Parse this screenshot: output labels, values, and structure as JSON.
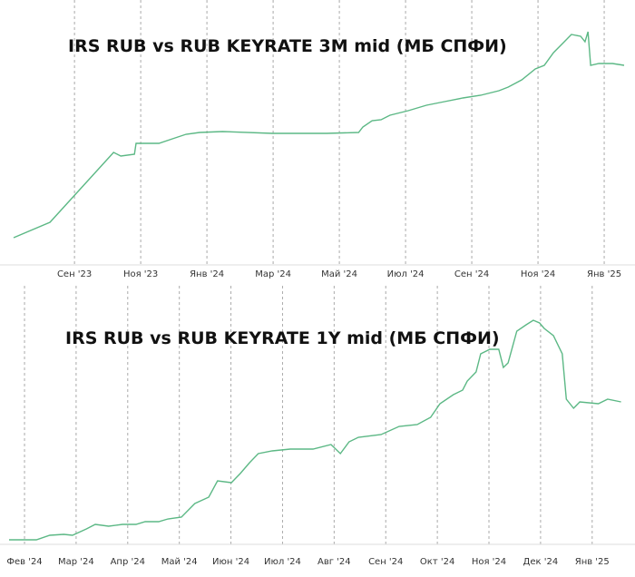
{
  "chart_data": [
    {
      "type": "line",
      "title": "IRS RUB vs RUB KEYRATE 3M mid (МБ СПФИ)",
      "x": [
        -1.84,
        -0.74,
        1.18,
        1.4,
        1.81,
        1.86,
        2.14,
        2.55,
        2.96,
        3.37,
        3.78,
        4.47,
        5.97,
        7.07,
        7.62,
        8.58,
        8.71,
        8.99,
        9.26,
        9.53,
        10.08,
        10.63,
        11.18,
        11.73,
        12.27,
        12.82,
        13.1,
        13.51,
        13.92,
        14.19,
        14.47,
        14.74,
        15.01,
        15.29,
        15.42,
        15.51,
        15.59,
        15.84,
        16.25,
        16.6
      ],
      "series": [
        {
          "name": "IRS RUB vs RUB KEYRATE 3M mid",
          "color": "#5cb885",
          "values": [
            30,
            47,
            124,
            120,
            122,
            134,
            134,
            134,
            139,
            144,
            146,
            147,
            145,
            145,
            145,
            146,
            152,
            159,
            160,
            165,
            170,
            176,
            180,
            184,
            187,
            192,
            196,
            204,
            216,
            220,
            234,
            244,
            254,
            252,
            246,
            257,
            220,
            222,
            222,
            220
          ]
        }
      ],
      "xlim": [
        -2.25,
        16.93
      ],
      "ylim": [
        0,
        292
      ],
      "xticks": [
        {
          "value": 0,
          "label": "Сен '23"
        },
        {
          "value": 2,
          "label": "Ноя '23"
        },
        {
          "value": 4,
          "label": "Янв '24"
        },
        {
          "value": 6,
          "label": "Мар '24"
        },
        {
          "value": 8,
          "label": "Май '24"
        },
        {
          "value": 10,
          "label": "Июл '24"
        },
        {
          "value": 12,
          "label": "Сен '24"
        },
        {
          "value": 14,
          "label": "Ноя '24"
        },
        {
          "value": 16,
          "label": "Янв '25"
        }
      ],
      "grid": true
    },
    {
      "type": "line",
      "title": "IRS RUB vs RUB KEYRATE 1Y mid (МБ СПФИ)",
      "x": [
        -0.3,
        0.23,
        0.49,
        0.76,
        0.93,
        1.2,
        1.37,
        1.63,
        1.9,
        2.16,
        2.34,
        2.6,
        2.78,
        3.04,
        3.3,
        3.57,
        3.74,
        4.01,
        4.18,
        4.36,
        4.53,
        4.8,
        5.15,
        5.59,
        5.94,
        6.12,
        6.29,
        6.47,
        6.91,
        7.26,
        7.61,
        7.87,
        8.05,
        8.31,
        8.49,
        8.58,
        8.75,
        8.84,
        9.02,
        9.19,
        9.28,
        9.37,
        9.54,
        9.72,
        9.86,
        9.98,
        10.07,
        10.25,
        10.42,
        10.5,
        10.64,
        10.76,
        11.12,
        11.3,
        11.56
      ],
      "series": [
        {
          "name": "IRS RUB vs RUB KEYRATE 1Y mid",
          "color": "#5cb885",
          "values": [
            5,
            5,
            10,
            11,
            10,
            17,
            22,
            20,
            22,
            22,
            25,
            25,
            28,
            30,
            45,
            52,
            70,
            68,
            78,
            90,
            100,
            103,
            105,
            105,
            110,
            100,
            113,
            118,
            121,
            130,
            132,
            140,
            155,
            165,
            170,
            180,
            190,
            210,
            215,
            215,
            195,
            200,
            235,
            242,
            247,
            244,
            238,
            230,
            210,
            160,
            150,
            157,
            155,
            160,
            157
          ]
        }
      ],
      "xlim": [
        -0.475,
        11.83
      ],
      "ylim": [
        0,
        285
      ],
      "xticks": [
        {
          "value": 0,
          "label": "Фев '24"
        },
        {
          "value": 1,
          "label": "Мар '24"
        },
        {
          "value": 2,
          "label": "Апр '24"
        },
        {
          "value": 3,
          "label": "Май '24"
        },
        {
          "value": 4,
          "label": "Июн '24"
        },
        {
          "value": 5,
          "label": "Июл '24"
        },
        {
          "value": 6,
          "label": "Авг '24"
        },
        {
          "value": 7,
          "label": "Сен '24"
        },
        {
          "value": 8,
          "label": "Окт '24"
        },
        {
          "value": 9,
          "label": "Ноя '24"
        },
        {
          "value": 10,
          "label": "Дек '24"
        },
        {
          "value": 11,
          "label": "Янв '25"
        }
      ],
      "grid": true
    }
  ]
}
